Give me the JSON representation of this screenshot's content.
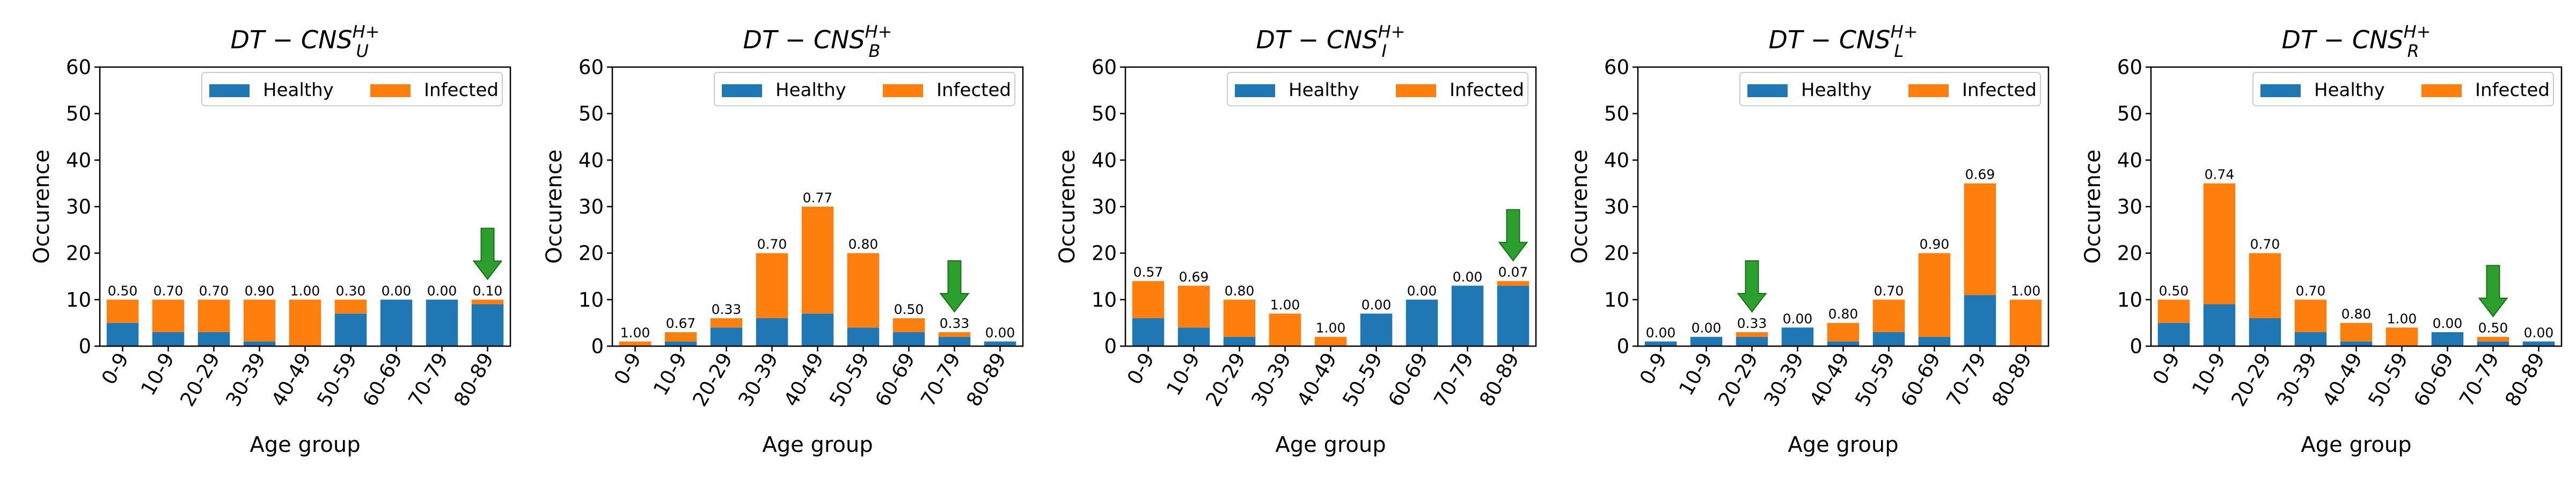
{
  "colors": {
    "healthy": "#1f77b4",
    "infected": "#ff7f0e",
    "arrow_fill": "#2ca02c",
    "arrow_stroke": "#1a6e1a"
  },
  "common": {
    "xlabel": "Age group",
    "ylabel": "Occurence",
    "categories": [
      "0-9",
      "10-9",
      "20-29",
      "30-39",
      "40-49",
      "50-59",
      "60-69",
      "70-79",
      "80-89"
    ],
    "yticks": [
      "0",
      "10",
      "20",
      "30",
      "40",
      "50",
      "60"
    ],
    "legend": [
      "Healthy",
      "Infected"
    ]
  },
  "chart_data": [
    {
      "type": "bar",
      "stacked": true,
      "title": {
        "base": "DT − CNS",
        "sup": "H+",
        "sub": "U"
      },
      "xlabel": "Age group",
      "ylabel": "Occurence",
      "ylim": [
        0,
        60
      ],
      "legend_position": "top-right",
      "categories": [
        "0-9",
        "10-9",
        "20-29",
        "30-39",
        "40-49",
        "50-59",
        "60-69",
        "70-79",
        "80-89"
      ],
      "series": [
        {
          "name": "Healthy",
          "values": [
            5,
            3,
            3,
            1,
            0,
            7,
            10,
            10,
            9
          ]
        },
        {
          "name": "Infected",
          "values": [
            5,
            7,
            7,
            9,
            10,
            3,
            0,
            0,
            1
          ]
        }
      ],
      "labels": [
        "0.50",
        "0.70",
        "0.70",
        "0.90",
        "1.00",
        "0.30",
        "0.00",
        "0.00",
        "0.10"
      ],
      "arrow_index": 8
    },
    {
      "type": "bar",
      "stacked": true,
      "title": {
        "base": "DT − CNS",
        "sup": "H+",
        "sub": "B"
      },
      "xlabel": "Age group",
      "ylabel": "Occurence",
      "ylim": [
        0,
        60
      ],
      "legend_position": "top-right",
      "categories": [
        "0-9",
        "10-9",
        "20-29",
        "30-39",
        "40-49",
        "50-59",
        "60-69",
        "70-79",
        "80-89"
      ],
      "series": [
        {
          "name": "Healthy",
          "values": [
            0,
            1,
            4,
            6,
            7,
            4,
            3,
            2,
            1
          ]
        },
        {
          "name": "Infected",
          "values": [
            1,
            2,
            2,
            14,
            23,
            16,
            3,
            1,
            0
          ]
        }
      ],
      "labels": [
        "1.00",
        "0.67",
        "0.33",
        "0.70",
        "0.77",
        "0.80",
        "0.50",
        "0.33",
        "0.00"
      ],
      "arrow_index": 7
    },
    {
      "type": "bar",
      "stacked": true,
      "title": {
        "base": "DT − CNS",
        "sup": "H+",
        "sub": "I"
      },
      "xlabel": "Age group",
      "ylabel": "Occurence",
      "ylim": [
        0,
        60
      ],
      "legend_position": "top-right",
      "categories": [
        "0-9",
        "10-9",
        "20-29",
        "30-39",
        "40-49",
        "50-59",
        "60-69",
        "70-79",
        "80-89"
      ],
      "series": [
        {
          "name": "Healthy",
          "values": [
            6,
            4,
            2,
            0,
            0,
            7,
            10,
            13,
            13
          ]
        },
        {
          "name": "Infected",
          "values": [
            8,
            9,
            8,
            7,
            2,
            0,
            0,
            0,
            1
          ]
        }
      ],
      "labels": [
        "0.57",
        "0.69",
        "0.80",
        "1.00",
        "1.00",
        "0.00",
        "0.00",
        "0.00",
        "0.07"
      ],
      "arrow_index": 8
    },
    {
      "type": "bar",
      "stacked": true,
      "title": {
        "base": "DT − CNS",
        "sup": "H+",
        "sub": "L"
      },
      "xlabel": "Age group",
      "ylabel": "Occurence",
      "ylim": [
        0,
        60
      ],
      "legend_position": "top-right",
      "categories": [
        "0-9",
        "10-9",
        "20-29",
        "30-39",
        "40-49",
        "50-59",
        "60-69",
        "70-79",
        "80-89"
      ],
      "series": [
        {
          "name": "Healthy",
          "values": [
            1,
            2,
            2,
            4,
            1,
            3,
            2,
            11,
            0
          ]
        },
        {
          "name": "Infected",
          "values": [
            0,
            0,
            1,
            0,
            4,
            7,
            18,
            24,
            10
          ]
        }
      ],
      "labels": [
        "0.00",
        "0.00",
        "0.33",
        "0.00",
        "0.80",
        "0.70",
        "0.90",
        "0.69",
        "1.00"
      ],
      "arrow_index": 2
    },
    {
      "type": "bar",
      "stacked": true,
      "title": {
        "base": "DT − CNS",
        "sup": "H+",
        "sub": "R"
      },
      "xlabel": "Age group",
      "ylabel": "Occurence",
      "ylim": [
        0,
        60
      ],
      "legend_position": "top-right",
      "categories": [
        "0-9",
        "10-9",
        "20-29",
        "30-39",
        "40-49",
        "50-59",
        "60-69",
        "70-79",
        "80-89"
      ],
      "series": [
        {
          "name": "Healthy",
          "values": [
            5,
            9,
            6,
            3,
            1,
            0,
            3,
            1,
            1
          ]
        },
        {
          "name": "Infected",
          "values": [
            5,
            26,
            14,
            7,
            4,
            4,
            0,
            1,
            0
          ]
        }
      ],
      "labels": [
        "0.50",
        "0.74",
        "0.70",
        "0.70",
        "0.80",
        "1.00",
        "0.00",
        "0.50",
        "0.00"
      ],
      "arrow_index": 7
    }
  ]
}
